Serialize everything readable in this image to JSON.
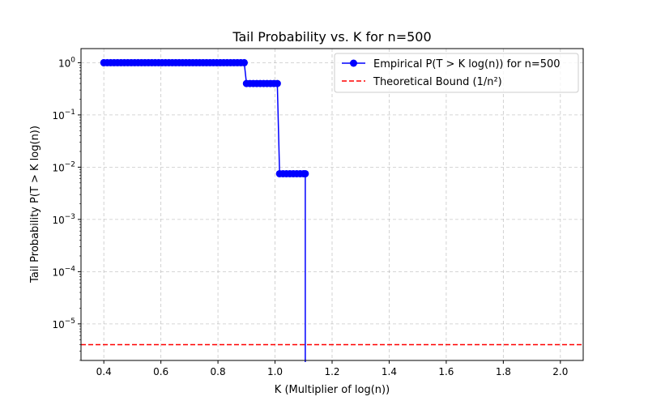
{
  "chart_data": {
    "type": "line",
    "title": "Tail Probability vs. K for n=500",
    "xlabel": "K (Multiplier of log(n))",
    "ylabel": "Tail Probability P(T > K log(n))",
    "xlim": [
      0.32,
      2.08
    ],
    "ylim_log10": [
      -5.7,
      0.27
    ],
    "y_scale": "log",
    "grid": true,
    "legend_position": "top-right",
    "x_ticks": [
      0.4,
      0.6,
      0.8,
      1.0,
      1.2,
      1.4,
      1.6,
      1.8,
      2.0
    ],
    "x_tick_labels": [
      "0.4",
      "0.6",
      "0.8",
      "1.0",
      "1.2",
      "1.4",
      "1.6",
      "1.8",
      "2.0"
    ],
    "y_ticks": [
      {
        "exp": 0,
        "label": "10",
        "sup": "0"
      },
      {
        "exp": -1,
        "label": "10",
        "sup": "−1"
      },
      {
        "exp": -2,
        "label": "10",
        "sup": "−2"
      },
      {
        "exp": -3,
        "label": "10",
        "sup": "−3"
      },
      {
        "exp": -4,
        "label": "10",
        "sup": "−4"
      },
      {
        "exp": -5,
        "label": "10",
        "sup": "−5"
      }
    ],
    "series": [
      {
        "name": "Empirical P(T > K log(n)) for n=500",
        "color": "#0000ff",
        "marker": "circle",
        "x": [
          0.4,
          0.412,
          0.424,
          0.436,
          0.448,
          0.46,
          0.472,
          0.484,
          0.496,
          0.508,
          0.52,
          0.532,
          0.544,
          0.556,
          0.568,
          0.58,
          0.592,
          0.604,
          0.616,
          0.628,
          0.64,
          0.652,
          0.664,
          0.676,
          0.688,
          0.7,
          0.712,
          0.724,
          0.736,
          0.748,
          0.76,
          0.772,
          0.784,
          0.796,
          0.808,
          0.82,
          0.832,
          0.844,
          0.856,
          0.868,
          0.88,
          0.892,
          0.9,
          0.912,
          0.924,
          0.936,
          0.948,
          0.96,
          0.972,
          0.984,
          0.996,
          1.008,
          1.016,
          1.028,
          1.04,
          1.052,
          1.064,
          1.076,
          1.088,
          1.1,
          1.106
        ],
        "y": [
          1,
          1,
          1,
          1,
          1,
          1,
          1,
          1,
          1,
          1,
          1,
          1,
          1,
          1,
          1,
          1,
          1,
          1,
          1,
          1,
          1,
          1,
          1,
          1,
          1,
          1,
          1,
          1,
          1,
          1,
          1,
          1,
          1,
          1,
          1,
          1,
          1,
          1,
          1,
          1,
          1,
          1,
          0.4,
          0.4,
          0.4,
          0.4,
          0.4,
          0.4,
          0.4,
          0.4,
          0.4,
          0.4,
          0.0075,
          0.0075,
          0.0075,
          0.0075,
          0.0075,
          0.0075,
          0.0075,
          0.0075,
          0.0075
        ],
        "drop_to_zero_at": 1.106
      },
      {
        "name": "Theoretical Bound (1/n²)",
        "color": "#ff0000",
        "style": "dashed",
        "y_constant": 4e-06
      }
    ]
  }
}
